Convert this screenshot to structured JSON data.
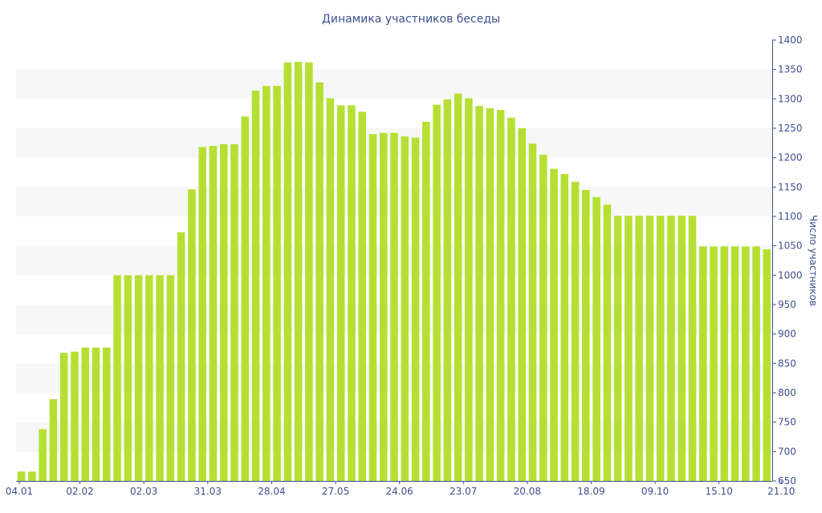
{
  "chart_data": {
    "type": "bar",
    "title": "Динамика участников беседы",
    "ylabel": "Число участников",
    "xlabel": "",
    "ylim": [
      650,
      1400
    ],
    "yticks": [
      650,
      700,
      750,
      800,
      850,
      900,
      950,
      1000,
      1050,
      1100,
      1150,
      1200,
      1250,
      1300,
      1350,
      1400
    ],
    "y_axis_side": "right",
    "grid": "horizontal alternating bands",
    "bar_color": "#b5e033",
    "band_color": "#f7f7f7",
    "text_color": "#3f4f8f",
    "x_tick_labels": [
      {
        "label": "04.01",
        "index": 0
      },
      {
        "label": "02.02",
        "index": 6
      },
      {
        "label": "02.03",
        "index": 12
      },
      {
        "label": "31.03",
        "index": 18
      },
      {
        "label": "28.04",
        "index": 24
      },
      {
        "label": "27.05",
        "index": 30
      },
      {
        "label": "24.06",
        "index": 36
      },
      {
        "label": "23.07",
        "index": 42
      },
      {
        "label": "20.08",
        "index": 48
      },
      {
        "label": "18.09",
        "index": 54
      },
      {
        "label": "09.10",
        "index": 60
      },
      {
        "label": "15.10",
        "index": 66
      },
      {
        "label": "21.10",
        "index": 72
      }
    ],
    "values": [
      666,
      666,
      738,
      789,
      868,
      870,
      877,
      877,
      877,
      1000,
      1000,
      1000,
      1000,
      1000,
      1000,
      1073,
      1146,
      1218,
      1220,
      1223,
      1223,
      1270,
      1314,
      1322,
      1322,
      1362,
      1363,
      1362,
      1328,
      1301,
      1289,
      1289,
      1278,
      1240,
      1242,
      1242,
      1236,
      1234,
      1261,
      1290,
      1299,
      1309,
      1301,
      1288,
      1284,
      1281,
      1268,
      1250,
      1224,
      1205,
      1181,
      1172,
      1159,
      1145,
      1133,
      1120,
      1101,
      1101,
      1101,
      1101,
      1101,
      1101,
      1101,
      1101,
      1049,
      1049,
      1049,
      1049,
      1049,
      1049,
      1044
    ]
  }
}
